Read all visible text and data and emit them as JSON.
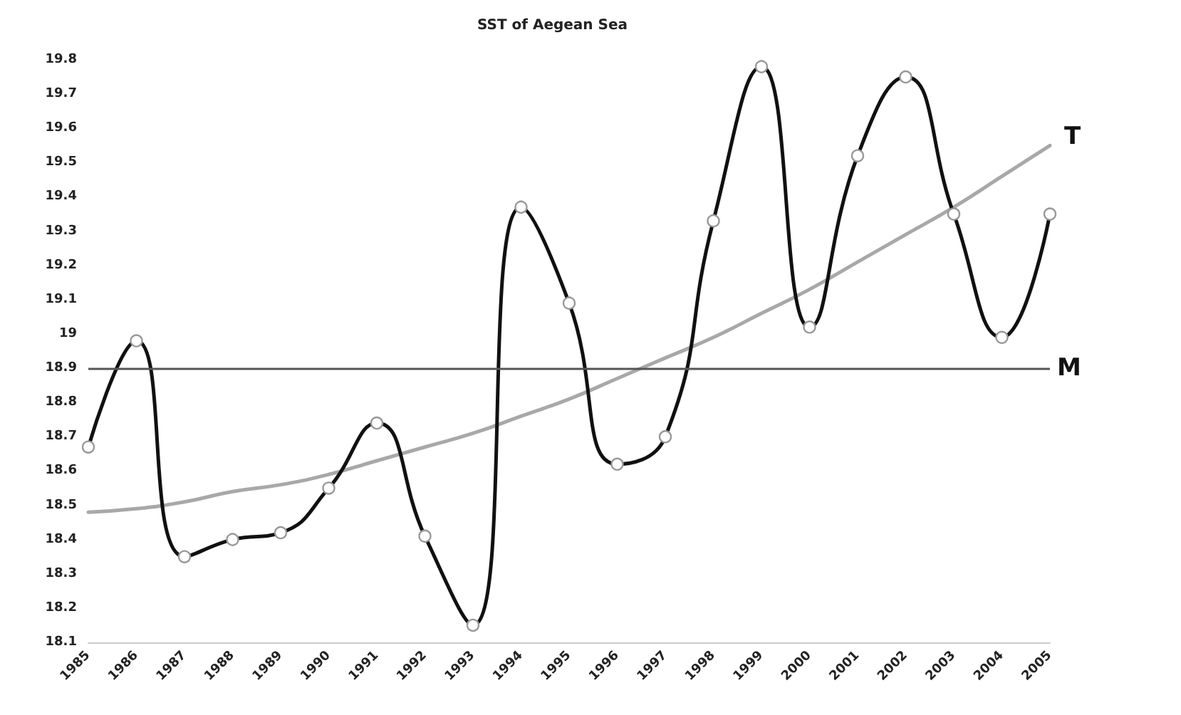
{
  "chart_data": {
    "type": "line",
    "title": "SST of Aegean Sea",
    "categories": [
      "1985",
      "1986",
      "1987",
      "1988",
      "1989",
      "1990",
      "1991",
      "1992",
      "1993",
      "1994",
      "1995",
      "1996",
      "1997",
      "1998",
      "1999",
      "2000",
      "2001",
      "2002",
      "2003",
      "2004",
      "2005"
    ],
    "series": [
      {
        "color": "#111111",
        "marker": "circle",
        "values": [
          18.67,
          18.98,
          18.35,
          18.4,
          18.42,
          18.55,
          18.74,
          18.41,
          18.15,
          19.37,
          19.09,
          18.62,
          18.7,
          19.33,
          19.78,
          19.02,
          19.52,
          19.75,
          19.35,
          18.99,
          19.35
        ]
      },
      {
        "name": "T",
        "color": "#a8a8a8",
        "marker": "none",
        "values": [
          18.48,
          18.49,
          18.51,
          18.54,
          18.56,
          18.59,
          18.63,
          18.67,
          18.71,
          18.76,
          18.81,
          18.87,
          18.93,
          18.99,
          19.06,
          19.13,
          19.21,
          19.29,
          19.37,
          19.46,
          19.55
        ]
      }
    ],
    "ylim": [
      18.1,
      19.8
    ],
    "yticks": [
      18.1,
      18.2,
      18.3,
      18.4,
      18.5,
      18.6,
      18.7,
      18.8,
      18.9,
      19,
      19.1,
      19.2,
      19.3,
      19.4,
      19.5,
      19.6,
      19.7,
      19.8
    ],
    "ref_lines": [
      {
        "axis": "y",
        "value": 18.9,
        "label": "M",
        "color": "#555555"
      }
    ],
    "grid": false,
    "legend": false,
    "line_style": "solid"
  }
}
